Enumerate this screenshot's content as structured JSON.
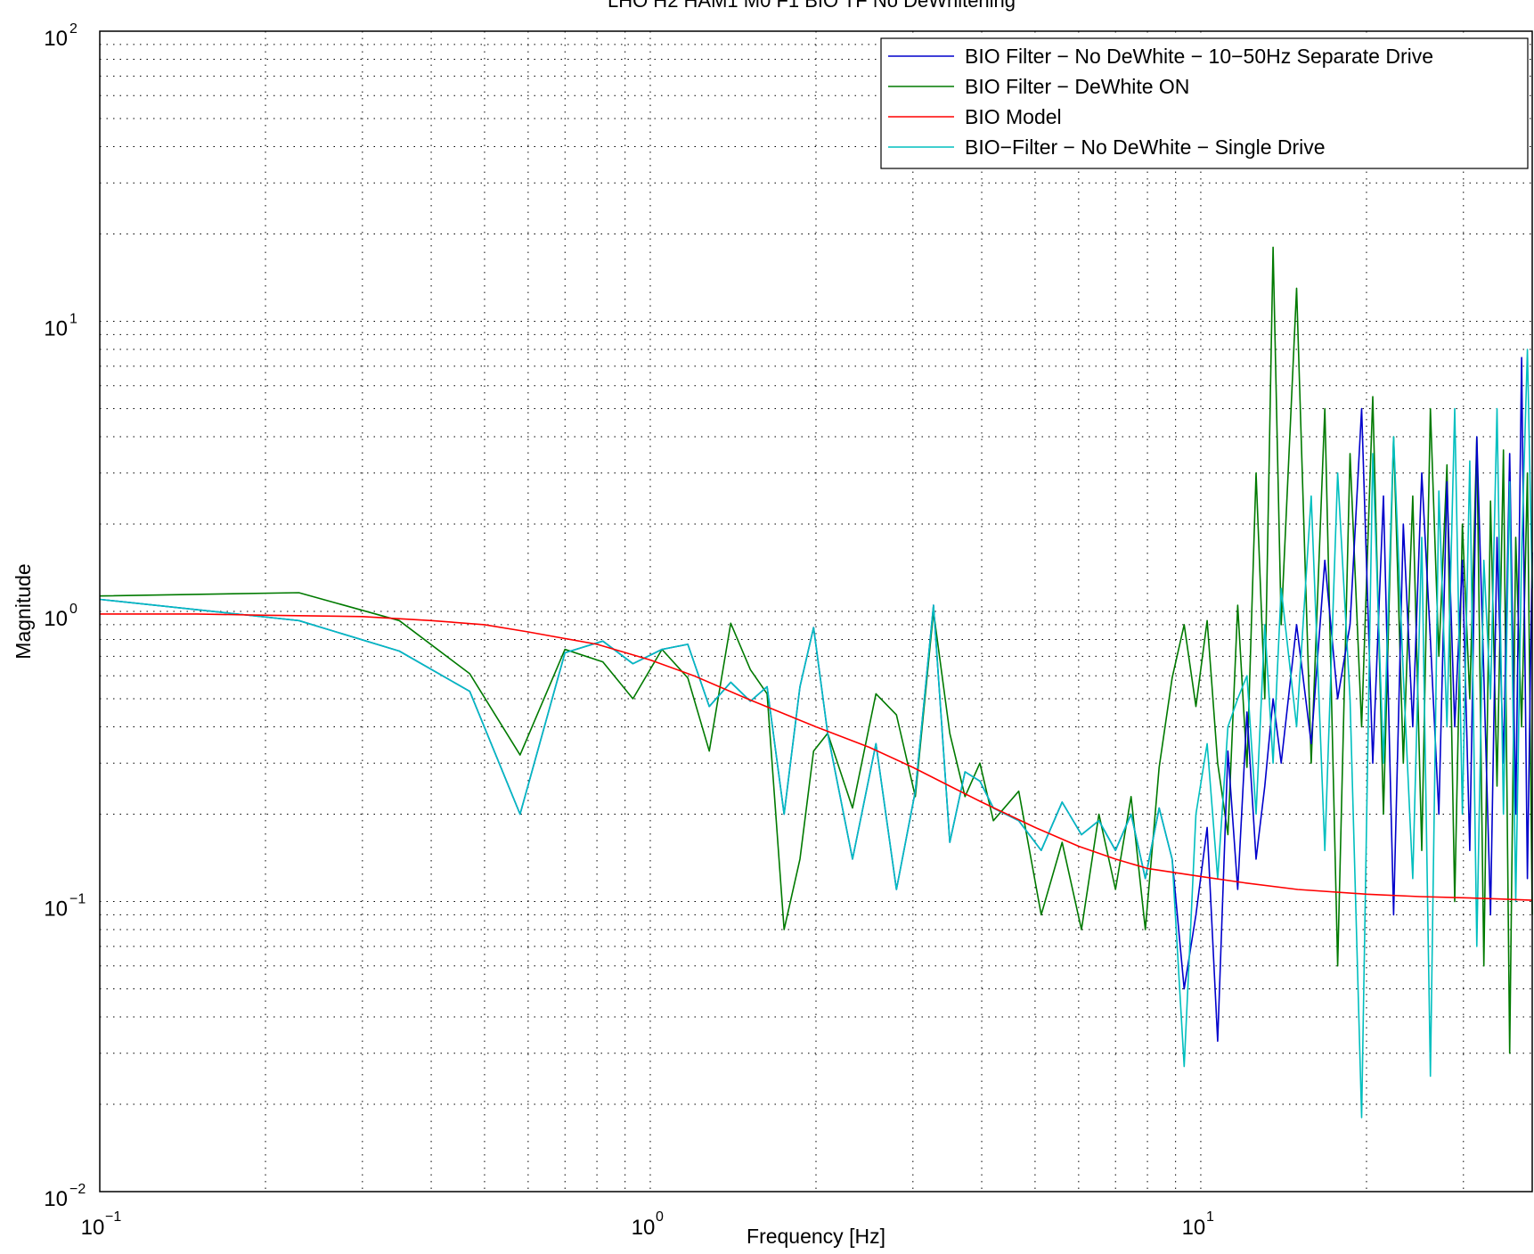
{
  "chart_data": {
    "type": "line",
    "title": "LHO H2 HAM1 M0 F1 BIO TF No DeWhitening",
    "xlabel": "Frequency [Hz]",
    "ylabel": "Magnitude",
    "xscale": "log",
    "yscale": "log",
    "xlim": [
      0.1,
      40
    ],
    "ylim": [
      0.01,
      100
    ],
    "grid": true,
    "legend_position": "top-right",
    "x_ticks": [
      {
        "base": "10",
        "exp": "−1",
        "value": 0.1
      },
      {
        "base": "10",
        "exp": "0",
        "value": 1
      },
      {
        "base": "10",
        "exp": "1",
        "value": 10
      }
    ],
    "y_ticks": [
      {
        "base": "10",
        "exp": "−2",
        "value": 0.01
      },
      {
        "base": "10",
        "exp": "−1",
        "value": 0.1
      },
      {
        "base": "10",
        "exp": "0",
        "value": 1
      },
      {
        "base": "10",
        "exp": "1",
        "value": 10
      },
      {
        "base": "10",
        "exp": "2",
        "value": 100
      }
    ],
    "series": [
      {
        "name": "BIO Filter − No DeWhite − 10−50Hz Separate Drive",
        "color": "#0000cc",
        "x": [
          0.1,
          0.23,
          0.35,
          0.47,
          0.58,
          0.7,
          0.82,
          0.93,
          1.05,
          1.17,
          1.28,
          1.4,
          1.52,
          1.63,
          1.75,
          1.87,
          1.98,
          2.1,
          2.33,
          2.57,
          2.8,
          3.03,
          3.27,
          3.5,
          3.73,
          3.97,
          4.2,
          4.67,
          5.13,
          5.6,
          6.07,
          6.53,
          7.0,
          7.47,
          7.93,
          8.4,
          8.87,
          9.33,
          9.8,
          10.27,
          10.73,
          11.2,
          11.67,
          12.13,
          12.6,
          13.07,
          13.53,
          14.0,
          14.93,
          15.87,
          16.8,
          17.73,
          18.67,
          19.6,
          20.53,
          21.47,
          22.4,
          23.33,
          24.27,
          25.2,
          26.13,
          27.07,
          28.0,
          28.93,
          29.87,
          30.8,
          31.73,
          32.67,
          33.6,
          34.53,
          35.47,
          36.4,
          37.33,
          38.27,
          39.2,
          40.0
        ],
        "values": [
          1.1,
          0.93,
          0.73,
          0.53,
          0.2,
          0.72,
          0.79,
          0.66,
          0.74,
          0.77,
          0.47,
          0.57,
          0.49,
          0.55,
          0.2,
          0.55,
          0.88,
          0.38,
          0.14,
          0.35,
          0.11,
          0.24,
          1.05,
          0.16,
          0.28,
          0.26,
          0.21,
          0.19,
          0.15,
          0.22,
          0.17,
          0.19,
          0.15,
          0.2,
          0.12,
          0.21,
          0.14,
          0.05,
          0.09,
          0.18,
          0.033,
          0.33,
          0.11,
          0.45,
          0.14,
          0.25,
          0.5,
          0.3,
          0.9,
          0.35,
          1.5,
          0.5,
          0.9,
          5.0,
          0.3,
          2.5,
          0.09,
          2.0,
          0.4,
          3.0,
          0.8,
          0.2,
          2.8,
          0.4,
          1.5,
          0.15,
          4.0,
          0.6,
          0.09,
          1.8,
          0.3,
          3.5,
          0.2,
          7.5,
          0.12,
          1.6
        ]
      },
      {
        "name": "BIO Filter − DeWhite ON",
        "color": "#007a00",
        "x": [
          0.1,
          0.23,
          0.35,
          0.47,
          0.58,
          0.7,
          0.82,
          0.93,
          1.05,
          1.17,
          1.28,
          1.4,
          1.52,
          1.63,
          1.75,
          1.87,
          1.98,
          2.1,
          2.33,
          2.57,
          2.8,
          3.03,
          3.27,
          3.5,
          3.73,
          3.97,
          4.2,
          4.67,
          5.13,
          5.6,
          6.07,
          6.53,
          7.0,
          7.47,
          7.93,
          8.4,
          8.87,
          9.33,
          9.8,
          10.27,
          10.73,
          11.2,
          11.67,
          12.13,
          12.6,
          13.07,
          13.53,
          14.0,
          14.93,
          15.87,
          16.8,
          17.73,
          18.67,
          19.6,
          20.53,
          21.47,
          22.4,
          23.33,
          24.27,
          25.2,
          26.13,
          27.07,
          28.0,
          28.93,
          29.87,
          30.8,
          31.73,
          32.67,
          33.6,
          34.53,
          35.47,
          36.4,
          37.33,
          38.27,
          39.2,
          40.0
        ],
        "values": [
          1.13,
          1.16,
          0.93,
          0.61,
          0.32,
          0.74,
          0.67,
          0.5,
          0.74,
          0.59,
          0.33,
          0.91,
          0.63,
          0.52,
          0.08,
          0.14,
          0.33,
          0.38,
          0.21,
          0.52,
          0.44,
          0.23,
          1.0,
          0.38,
          0.23,
          0.3,
          0.19,
          0.24,
          0.09,
          0.16,
          0.08,
          0.2,
          0.11,
          0.23,
          0.08,
          0.29,
          0.59,
          0.9,
          0.47,
          0.93,
          0.3,
          0.17,
          1.05,
          0.29,
          3.0,
          0.5,
          18.0,
          0.9,
          13.0,
          0.3,
          5.0,
          0.06,
          3.5,
          0.4,
          5.5,
          0.2,
          4.0,
          0.3,
          2.5,
          0.15,
          5.0,
          0.7,
          3.2,
          0.1,
          2.0,
          0.5,
          4.0,
          0.06,
          2.4,
          0.25,
          3.6,
          0.03,
          1.8,
          0.4,
          3.0,
          0.09
        ]
      },
      {
        "name": "BIO Model",
        "color": "#ff0000",
        "x": [
          0.1,
          0.15,
          0.2,
          0.3,
          0.4,
          0.5,
          0.6,
          0.8,
          1.0,
          1.2,
          1.5,
          2.0,
          2.5,
          3.0,
          3.5,
          4.0,
          5.0,
          6.0,
          7.0,
          8.0,
          10.0,
          12.0,
          15.0,
          20.0,
          25.0,
          30.0,
          35.0,
          40.0
        ],
        "values": [
          0.98,
          0.98,
          0.97,
          0.96,
          0.93,
          0.9,
          0.85,
          0.77,
          0.68,
          0.6,
          0.5,
          0.4,
          0.34,
          0.29,
          0.25,
          0.22,
          0.18,
          0.155,
          0.14,
          0.13,
          0.122,
          0.116,
          0.11,
          0.106,
          0.104,
          0.103,
          0.102,
          0.101
        ]
      },
      {
        "name": "BIO−Filter − No DeWhite − Single Drive",
        "color": "#00bfbf",
        "x": [
          0.1,
          0.23,
          0.35,
          0.47,
          0.58,
          0.7,
          0.82,
          0.93,
          1.05,
          1.17,
          1.28,
          1.4,
          1.52,
          1.63,
          1.75,
          1.87,
          1.98,
          2.1,
          2.33,
          2.57,
          2.8,
          3.03,
          3.27,
          3.5,
          3.73,
          3.97,
          4.2,
          4.67,
          5.13,
          5.6,
          6.07,
          6.53,
          7.0,
          7.47,
          7.93,
          8.4,
          8.87,
          9.33,
          9.8,
          10.27,
          10.73,
          11.2,
          11.67,
          12.13,
          12.6,
          13.07,
          13.53,
          14.0,
          14.93,
          15.87,
          16.8,
          17.73,
          18.67,
          19.6,
          20.53,
          21.47,
          22.4,
          23.33,
          24.27,
          25.2,
          26.13,
          27.07,
          28.0,
          28.93,
          29.87,
          30.8,
          31.73,
          32.67,
          33.6,
          34.53,
          35.47,
          36.4,
          37.33,
          38.27,
          39.2,
          40.0
        ],
        "values": [
          1.1,
          0.93,
          0.73,
          0.53,
          0.2,
          0.72,
          0.79,
          0.66,
          0.74,
          0.77,
          0.47,
          0.57,
          0.49,
          0.55,
          0.2,
          0.55,
          0.88,
          0.38,
          0.14,
          0.35,
          0.11,
          0.24,
          1.05,
          0.16,
          0.28,
          0.26,
          0.21,
          0.19,
          0.15,
          0.22,
          0.17,
          0.19,
          0.15,
          0.2,
          0.12,
          0.21,
          0.14,
          0.027,
          0.2,
          0.35,
          0.12,
          0.4,
          0.5,
          0.6,
          0.2,
          0.9,
          0.3,
          1.2,
          0.4,
          2.5,
          0.15,
          3.0,
          0.5,
          0.018,
          3.5,
          0.3,
          4.0,
          0.6,
          0.12,
          1.8,
          0.025,
          2.6,
          0.4,
          5.0,
          0.2,
          3.3,
          0.07,
          1.5,
          0.5,
          5.0,
          0.2,
          2.8,
          0.1,
          1.6,
          8.0,
          1.2
        ]
      }
    ]
  }
}
